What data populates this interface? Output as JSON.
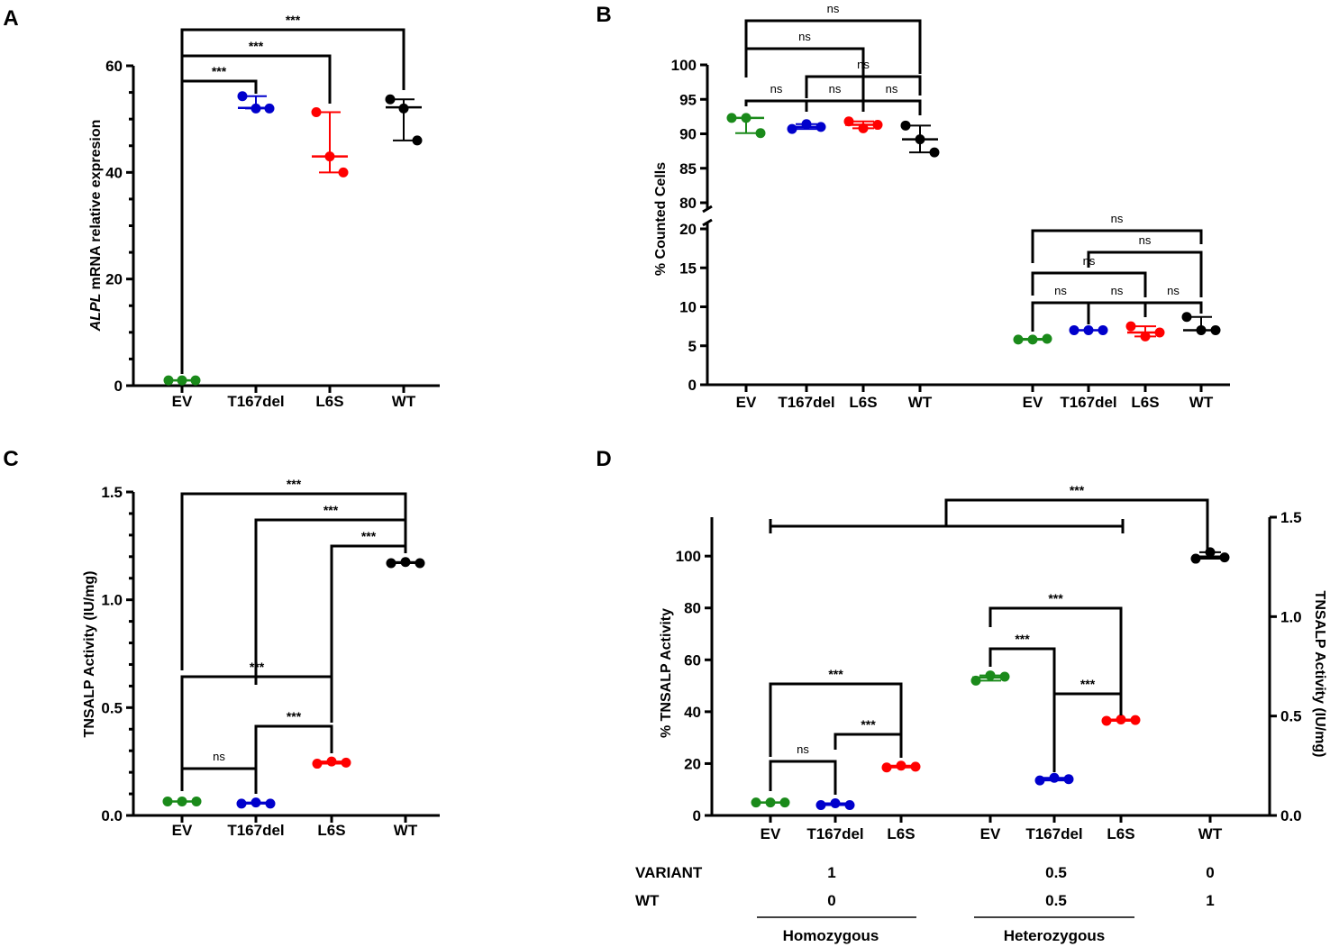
{
  "chart_data": [
    {
      "panel": "A",
      "type": "scatter",
      "ylabel_italic": "ALPL",
      "ylabel": "mRNA relative expresion",
      "ylim": [
        0,
        60
      ],
      "yticks": [
        0,
        20,
        40,
        60
      ],
      "categories": [
        "EV",
        "T167del",
        "L6S",
        "WT"
      ],
      "colors": [
        "#1a8a1a",
        "#0000cc",
        "#ff0000",
        "#000000"
      ],
      "series": [
        {
          "name": "EV",
          "points": [
            1,
            1,
            1
          ],
          "mean": 1,
          "sd": [
            1,
            1
          ]
        },
        {
          "name": "T167del",
          "points": [
            54.3,
            52,
            52
          ],
          "mean": 52.1,
          "sd": [
            52,
            54.3
          ]
        },
        {
          "name": "L6S",
          "points": [
            51.3,
            43,
            40
          ],
          "mean": 43,
          "sd": [
            40,
            51.3
          ]
        },
        {
          "name": "WT",
          "points": [
            53.7,
            52,
            46
          ],
          "mean": 52.2,
          "sd": [
            46,
            53.7
          ]
        }
      ],
      "comparisons": [
        {
          "pair": [
            "EV",
            "T167del"
          ],
          "label": "***"
        },
        {
          "pair": [
            "EV",
            "L6S"
          ],
          "label": "***"
        },
        {
          "pair": [
            "EV",
            "WT"
          ],
          "label": "***"
        }
      ]
    },
    {
      "panel": "B",
      "type": "scatter",
      "ylabel": "% Counted Cells",
      "broken_axis": {
        "upper": [
          80,
          100
        ],
        "lower": [
          0,
          20
        ]
      },
      "yticks_upper": [
        80,
        85,
        90,
        95,
        100
      ],
      "yticks_lower": [
        0,
        5,
        10,
        15,
        20
      ],
      "categories": [
        "EV",
        "T167del",
        "L6S",
        "WT",
        "EV",
        "T167del",
        "L6S",
        "WT"
      ],
      "groups": [
        {
          "series": [
            {
              "name": "EV",
              "points": [
                92.3,
                92.3,
                90.1
              ],
              "mean": 92.3
            },
            {
              "name": "T167del",
              "points": [
                90.7,
                91.4,
                91
              ],
              "mean": 91
            },
            {
              "name": "L6S",
              "points": [
                91.8,
                90.8,
                91.3
              ],
              "mean": 91.3
            },
            {
              "name": "WT",
              "points": [
                91.2,
                89.2,
                87.3
              ],
              "mean": 89.2
            }
          ],
          "comparisons": [
            {
              "pair": [
                "EV",
                "T167del"
              ],
              "label": "ns"
            },
            {
              "pair": [
                "T167del",
                "L6S"
              ],
              "label": "ns"
            },
            {
              "pair": [
                "L6S",
                "WT"
              ],
              "label": "ns"
            },
            {
              "pair": [
                "T167del",
                "WT"
              ],
              "label": "ns"
            },
            {
              "pair": [
                "EV",
                "L6S"
              ],
              "label": "ns"
            },
            {
              "pair": [
                "EV",
                "WT"
              ],
              "label": "ns"
            }
          ]
        },
        {
          "series": [
            {
              "name": "EV",
              "points": [
                5.8,
                5.8,
                5.9
              ],
              "mean": 5.8
            },
            {
              "name": "T167del",
              "points": [
                7,
                7,
                7
              ],
              "mean": 7
            },
            {
              "name": "L6S",
              "points": [
                7.5,
                6.2,
                6.7
              ],
              "mean": 6.7
            },
            {
              "name": "WT",
              "points": [
                8.7,
                7,
                7
              ],
              "mean": 7
            }
          ],
          "comparisons": [
            {
              "pair": [
                "EV",
                "T167del"
              ],
              "label": "ns"
            },
            {
              "pair": [
                "T167del",
                "L6S"
              ],
              "label": "ns"
            },
            {
              "pair": [
                "L6S",
                "WT"
              ],
              "label": "ns"
            },
            {
              "pair": [
                "EV",
                "L6S"
              ],
              "label": "ns"
            },
            {
              "pair": [
                "T167del",
                "WT"
              ],
              "label": "ns"
            },
            {
              "pair": [
                "EV",
                "WT"
              ],
              "label": "ns"
            }
          ]
        }
      ]
    },
    {
      "panel": "C",
      "type": "scatter",
      "ylabel": "TNSALP Activity (IU/mg)",
      "ylim": [
        0,
        1.5
      ],
      "yticks": [
        "0.0",
        "0.5",
        "1.0",
        "1.5"
      ],
      "categories": [
        "EV",
        "T167del",
        "L6S",
        "WT"
      ],
      "series": [
        {
          "name": "EV",
          "points": [
            0.065,
            0.065,
            0.065
          ],
          "mean": 0.065
        },
        {
          "name": "T167del",
          "points": [
            0.055,
            0.06,
            0.055
          ],
          "mean": 0.057
        },
        {
          "name": "L6S",
          "points": [
            0.24,
            0.25,
            0.245
          ],
          "mean": 0.245
        },
        {
          "name": "WT",
          "points": [
            1.17,
            1.175,
            1.17
          ],
          "mean": 1.172
        }
      ],
      "comparisons": [
        {
          "pair": [
            "EV",
            "T167del"
          ],
          "label": "ns"
        },
        {
          "pair": [
            "T167del",
            "L6S"
          ],
          "label": "***"
        },
        {
          "pair": [
            "EV",
            "L6S"
          ],
          "label": "***"
        },
        {
          "pair": [
            "L6S",
            "WT"
          ],
          "label": "***"
        },
        {
          "pair": [
            "T167del",
            "WT"
          ],
          "label": "***"
        },
        {
          "pair": [
            "EV",
            "WT"
          ],
          "label": "***"
        }
      ]
    },
    {
      "panel": "D",
      "type": "scatter",
      "ylabel": "% TNSALP Activity",
      "ylabel_right": "TNSALP Activity (IU/mg)",
      "ylim": [
        0,
        115
      ],
      "yticks": [
        0,
        20,
        40,
        60,
        80,
        100
      ],
      "yticks_right": [
        "0.0",
        "0.5",
        "1.0",
        "1.5"
      ],
      "categories": [
        "EV",
        "T167del",
        "L6S",
        "EV",
        "T167del",
        "L6S",
        "WT"
      ],
      "series": [
        {
          "name": "EV (hom)",
          "points": [
            5,
            5,
            5
          ],
          "mean": 5
        },
        {
          "name": "T167del (hom)",
          "points": [
            4,
            4.7,
            4
          ],
          "mean": 4.2
        },
        {
          "name": "L6S (hom)",
          "points": [
            18.5,
            19.2,
            18.8
          ],
          "mean": 18.8
        },
        {
          "name": "EV (het)",
          "points": [
            52,
            54,
            53.5
          ],
          "mean": 53.2
        },
        {
          "name": "T167del (het)",
          "points": [
            13.5,
            14.5,
            14
          ],
          "mean": 14
        },
        {
          "name": "L6S (het)",
          "points": [
            36.5,
            37,
            36.8
          ],
          "mean": 36.8
        },
        {
          "name": "WT",
          "points": [
            99,
            101.5,
            99.5
          ],
          "mean": 99.8
        }
      ],
      "comparisons": [
        {
          "pair": [
            "EV (hom)",
            "T167del (hom)"
          ],
          "label": "ns"
        },
        {
          "pair": [
            "T167del (hom)",
            "L6S (hom)"
          ],
          "label": "***"
        },
        {
          "pair": [
            "EV (hom)",
            "L6S (hom)"
          ],
          "label": "***"
        },
        {
          "pair": [
            "EV (het)",
            "T167del (het)"
          ],
          "label": "***"
        },
        {
          "pair": [
            "T167del (het)",
            "L6S (het)"
          ],
          "label": "***"
        },
        {
          "pair": [
            "EV (het)",
            "L6S (het)"
          ],
          "label": "***"
        },
        {
          "pair": [
            "all variants",
            "WT"
          ],
          "label": "***"
        }
      ],
      "genotype_table": {
        "rows": [
          {
            "label": "VARIANT",
            "values": [
              "1",
              "0.5",
              "0"
            ]
          },
          {
            "label": "WT",
            "values": [
              "0",
              "0.5",
              "1"
            ]
          }
        ],
        "groups": [
          "Homozygous",
          "Heterozygous"
        ]
      }
    }
  ],
  "panel_labels": [
    "A",
    "B",
    "C",
    "D"
  ],
  "colors": {
    "green": "#1a8a1a",
    "blue": "#0000cc",
    "red": "#ff0000",
    "black": "#000000"
  }
}
